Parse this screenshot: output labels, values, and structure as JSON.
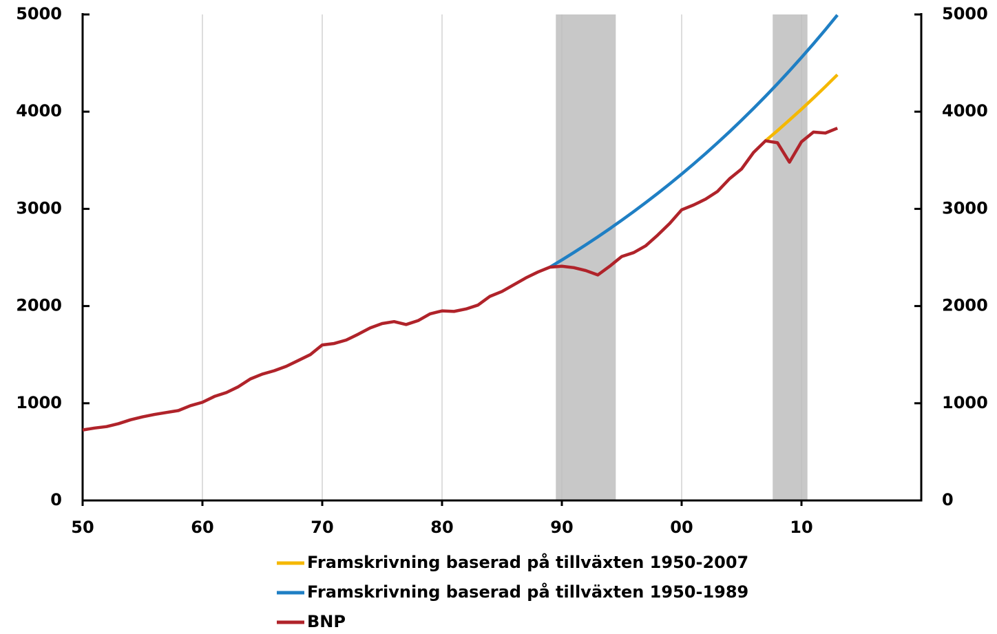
{
  "chart_data": {
    "type": "line",
    "xlim": [
      1950,
      2020
    ],
    "xticks": [
      {
        "value": 1950,
        "label": "50"
      },
      {
        "value": 1960,
        "label": "60"
      },
      {
        "value": 1970,
        "label": "70"
      },
      {
        "value": 1980,
        "label": "80"
      },
      {
        "value": 1990,
        "label": "90"
      },
      {
        "value": 2000,
        "label": "00"
      },
      {
        "value": 2010,
        "label": "10"
      }
    ],
    "ylim": [
      0,
      5000
    ],
    "yticks": [
      0,
      1000,
      2000,
      3000,
      4000,
      5000
    ],
    "y2lim": [
      0,
      5000
    ],
    "y2ticks": [
      0,
      1000,
      2000,
      3000,
      4000,
      5000
    ],
    "grid": "x",
    "shaded_ranges": [
      [
        1989.5,
        1994.5
      ],
      [
        2007.6,
        2010.5
      ]
    ],
    "shade_color": "#c8c8c8",
    "legend": "bottom",
    "series": [
      {
        "name": "Framskrivning baserad på tillväxten 1950-2007",
        "color": "#f5b800",
        "x": [
          2007,
          2008,
          2009,
          2010,
          2011,
          2012,
          2013
        ],
        "values": [
          3700,
          3805,
          3914,
          4025,
          4140,
          4258,
          4380
        ]
      },
      {
        "name": "Framskrivning baserad på tillväxten 1950-1989",
        "color": "#1f7fc4",
        "x": [
          1989,
          1990,
          1991,
          1992,
          1993,
          1994,
          1995,
          1996,
          1997,
          1998,
          1999,
          2000,
          2001,
          2002,
          2003,
          2004,
          2005,
          2006,
          2007,
          2008,
          2009,
          2010,
          2011,
          2012,
          2013
        ],
        "values": [
          2400,
          2474,
          2551,
          2630,
          2712,
          2796,
          2883,
          2972,
          3064,
          3159,
          3257,
          3358,
          3462,
          3569,
          3680,
          3794,
          3912,
          4033,
          4158,
          4287,
          4420,
          4557,
          4698,
          4844,
          4994
        ]
      },
      {
        "name": "BNP",
        "color": "#b0232a",
        "x": [
          1950,
          1951,
          1952,
          1953,
          1954,
          1955,
          1956,
          1957,
          1958,
          1959,
          1960,
          1961,
          1962,
          1963,
          1964,
          1965,
          1966,
          1967,
          1968,
          1969,
          1970,
          1971,
          1972,
          1973,
          1974,
          1975,
          1976,
          1977,
          1978,
          1979,
          1980,
          1981,
          1982,
          1983,
          1984,
          1985,
          1986,
          1987,
          1988,
          1989,
          1990,
          1991,
          1992,
          1993,
          1994,
          1995,
          1996,
          1997,
          1998,
          1999,
          2000,
          2001,
          2002,
          2003,
          2004,
          2005,
          2006,
          2007,
          2008,
          2009,
          2010,
          2011,
          2012,
          2013
        ],
        "values": [
          725,
          745,
          760,
          790,
          830,
          860,
          885,
          905,
          925,
          975,
          1010,
          1070,
          1110,
          1170,
          1250,
          1300,
          1335,
          1380,
          1440,
          1500,
          1600,
          1615,
          1650,
          1710,
          1775,
          1820,
          1840,
          1810,
          1850,
          1920,
          1950,
          1945,
          1970,
          2010,
          2100,
          2150,
          2220,
          2290,
          2350,
          2400,
          2410,
          2395,
          2365,
          2320,
          2410,
          2510,
          2550,
          2620,
          2730,
          2850,
          2990,
          3040,
          3100,
          3180,
          3310,
          3410,
          3580,
          3700,
          3680,
          3480,
          3690,
          3790,
          3780,
          3830
        ]
      }
    ]
  }
}
